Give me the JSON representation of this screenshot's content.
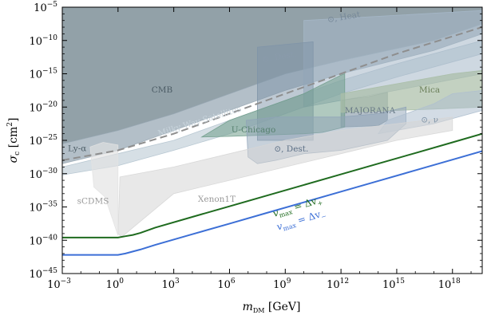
{
  "chart_data": {
    "type": "area",
    "title": "",
    "xlabel": "m_DM [GeV]",
    "ylabel": "σ_c [cm²]",
    "x_scale": "log",
    "y_scale": "log",
    "xlim_log10": [
      -3,
      19.6
    ],
    "ylim_log10": [
      -45,
      -5
    ],
    "x_ticks": [
      {
        "exp": -3,
        "label": "10",
        "sup": "−3"
      },
      {
        "exp": 0,
        "label": "10",
        "sup": "0"
      },
      {
        "exp": 3,
        "label": "10",
        "sup": "3"
      },
      {
        "exp": 6,
        "label": "10",
        "sup": "6"
      },
      {
        "exp": 9,
        "label": "10",
        "sup": "9"
      },
      {
        "exp": 12,
        "label": "10",
        "sup": "12"
      },
      {
        "exp": 15,
        "label": "10",
        "sup": "15"
      },
      {
        "exp": 18,
        "label": "10",
        "sup": "18"
      }
    ],
    "y_ticks": [
      {
        "exp": -5,
        "label": "10",
        "sup": "−5"
      },
      {
        "exp": -10,
        "label": "10",
        "sup": "−10"
      },
      {
        "exp": -15,
        "label": "10",
        "sup": "−15"
      },
      {
        "exp": -20,
        "label": "10",
        "sup": "−20"
      },
      {
        "exp": -25,
        "label": "10",
        "sup": "−25"
      },
      {
        "exp": -30,
        "label": "10",
        "sup": "−30"
      },
      {
        "exp": -35,
        "label": "10",
        "sup": "−35"
      },
      {
        "exp": -40,
        "label": "10",
        "sup": "−40"
      },
      {
        "exp": -45,
        "label": "10",
        "sup": "−45"
      }
    ],
    "regions": [
      {
        "name": "CMB",
        "color": "#7f9099",
        "opacity": 0.85,
        "points": [
          [
            -3,
            -5
          ],
          [
            19.6,
            -5
          ],
          [
            19.6,
            -7.5
          ],
          [
            17,
            -10
          ],
          [
            12,
            -13
          ],
          [
            9,
            -15
          ],
          [
            6,
            -18
          ],
          [
            3,
            -21
          ],
          [
            0,
            -23.5
          ],
          [
            -3,
            -25.5
          ]
        ]
      },
      {
        "name": "Ly-α",
        "color": "#9aaab5",
        "opacity": 0.75,
        "points": [
          [
            -3,
            -25.5
          ],
          [
            0,
            -23.5
          ],
          [
            3,
            -21
          ],
          [
            6,
            -18
          ],
          [
            9,
            -15
          ],
          [
            12,
            -13
          ],
          [
            17,
            -10
          ],
          [
            19.6,
            -7.5
          ],
          [
            19.6,
            -9
          ],
          [
            17,
            -11.5
          ],
          [
            12,
            -15
          ],
          [
            9,
            -17.5
          ],
          [
            6,
            -20.5
          ],
          [
            3,
            -23.5
          ],
          [
            0,
            -26.5
          ],
          [
            -3,
            -28.5
          ]
        ]
      },
      {
        "name": "Milky Way Satellites",
        "color": "#b4c4cf",
        "opacity": 0.55,
        "points": [
          [
            -3,
            -29
          ],
          [
            0,
            -27
          ],
          [
            3,
            -25
          ],
          [
            6,
            -22
          ],
          [
            9,
            -19
          ],
          [
            12,
            -16
          ],
          [
            15,
            -13.5
          ],
          [
            19.6,
            -10
          ],
          [
            19.6,
            -12
          ],
          [
            15,
            -15.5
          ],
          [
            12,
            -18
          ],
          [
            9,
            -21
          ],
          [
            6,
            -24
          ],
          [
            3,
            -26.5
          ],
          [
            0,
            -28.8
          ],
          [
            -3,
            -30.2
          ]
        ]
      },
      {
        "name": "⊙, Heat",
        "color": "#a6b8c9",
        "opacity": 0.55,
        "points": [
          [
            10,
            -7
          ],
          [
            19.6,
            -5.5
          ],
          [
            19.6,
            -15
          ],
          [
            14,
            -18
          ],
          [
            10,
            -20
          ]
        ]
      },
      {
        "name": "⊙, Dest.",
        "color": "#7e93a8",
        "opacity": 0.5,
        "points": [
          [
            7.5,
            -11
          ],
          [
            10.5,
            -10.2
          ],
          [
            10.5,
            -25
          ],
          [
            7.5,
            -25
          ]
        ]
      },
      {
        "name": "MAJORANA",
        "color": "#8b9dab",
        "opacity": 0.65,
        "points": [
          [
            12,
            -19
          ],
          [
            13.5,
            -18.4
          ],
          [
            14.5,
            -17.8
          ],
          [
            14.5,
            -22
          ],
          [
            14,
            -22.8
          ],
          [
            12,
            -23
          ]
        ]
      },
      {
        "name": "U-Chicago",
        "color": "#6f9c8a",
        "opacity": 0.55,
        "points": [
          [
            4.5,
            -24.5
          ],
          [
            6,
            -22
          ],
          [
            8,
            -20
          ],
          [
            10,
            -18
          ],
          [
            12,
            -15.2
          ],
          [
            12.2,
            -15
          ],
          [
            12.2,
            -23
          ],
          [
            11,
            -23.8
          ],
          [
            10,
            -24
          ],
          [
            8,
            -24.2
          ],
          [
            6,
            -24.4
          ]
        ]
      },
      {
        "name": "Mica",
        "color": "#a9bea6",
        "opacity": 0.7,
        "points": [
          [
            12,
            -18
          ],
          [
            14,
            -17
          ],
          [
            16,
            -16
          ],
          [
            18,
            -15
          ],
          [
            19.6,
            -14.5
          ],
          [
            19.6,
            -20
          ],
          [
            17,
            -20.3
          ],
          [
            14,
            -20.6
          ],
          [
            12,
            -20.8
          ]
        ]
      },
      {
        "name": "⊙, Dest.",
        "color": "#8fa3b8",
        "opacity": 0.5,
        "points": [
          [
            6.9,
            -22
          ],
          [
            8.5,
            -21.5
          ],
          [
            10,
            -21.5
          ],
          [
            12,
            -21.5
          ],
          [
            14,
            -21
          ],
          [
            15.5,
            -20
          ],
          [
            15.5,
            -22.5
          ],
          [
            14.5,
            -25
          ],
          [
            12,
            -26.5
          ],
          [
            10,
            -27
          ],
          [
            8.5,
            -28
          ],
          [
            7.5,
            -28.5
          ],
          [
            7,
            -27.5
          ]
        ]
      },
      {
        "name": "⊙, ν",
        "color": "#aebfcf",
        "opacity": 0.55,
        "points": [
          [
            14.5,
            -22
          ],
          [
            16,
            -20.5
          ],
          [
            17,
            -19.5
          ],
          [
            18,
            -18
          ],
          [
            19.6,
            -17.5
          ],
          [
            19.6,
            -20.5
          ],
          [
            17,
            -22.5
          ],
          [
            15,
            -23.5
          ],
          [
            14,
            -24
          ]
        ]
      },
      {
        "name": "Xenon1T",
        "color": "#d6d6d6",
        "opacity": 0.55,
        "points": [
          [
            0.1,
            -30.5
          ],
          [
            3,
            -29
          ],
          [
            6,
            -27
          ],
          [
            9,
            -25
          ],
          [
            12,
            -23.5
          ],
          [
            15,
            -22.5
          ],
          [
            18,
            -21.5
          ],
          [
            18,
            -23.5
          ],
          [
            15,
            -25
          ],
          [
            12,
            -27
          ],
          [
            9,
            -29
          ],
          [
            6,
            -31
          ],
          [
            3,
            -33
          ],
          [
            0.2,
            -39.5
          ],
          [
            0,
            -39
          ]
        ]
      },
      {
        "name": "sCDMS",
        "color": "#e2e2e2",
        "opacity": 0.65,
        "points": [
          [
            -1.5,
            -26
          ],
          [
            -0.8,
            -25.3
          ],
          [
            0,
            -25.7
          ],
          [
            0,
            -39.3
          ],
          [
            -0.7,
            -33.5
          ],
          [
            -1.3,
            -32
          ]
        ]
      }
    ],
    "dashed_line": {
      "name": "CMB projection",
      "color": "#8e8e8e",
      "points": [
        [
          -3,
          -28
        ],
        [
          0,
          -26.5
        ],
        [
          3,
          -24
        ],
        [
          6,
          -21
        ],
        [
          9,
          -18
        ],
        [
          12,
          -15
        ],
        [
          15,
          -12
        ],
        [
          19.6,
          -8
        ]
      ]
    },
    "series": [
      {
        "name": "v_max = Δv₊",
        "color": "#1f6b1f",
        "x": [
          -3,
          -1,
          0,
          0.4,
          0.8,
          1.2,
          2,
          4,
          6,
          8,
          10,
          12,
          14,
          16,
          18,
          19.6
        ],
        "y": [
          -39.6,
          -39.6,
          -39.6,
          -39.4,
          -39.2,
          -38.9,
          -38.1,
          -36.5,
          -34.9,
          -33.3,
          -31.7,
          -30.1,
          -28.5,
          -26.9,
          -25.3,
          -24.0
        ]
      },
      {
        "name": "v_max = Δv₋",
        "color": "#3c6fd6",
        "x": [
          -3,
          -1,
          0,
          0.4,
          0.8,
          1.2,
          2,
          4,
          6,
          8,
          10,
          12,
          14,
          16,
          18,
          19.6
        ],
        "y": [
          -42.2,
          -42.2,
          -42.2,
          -42.0,
          -41.7,
          -41.4,
          -40.7,
          -39.1,
          -37.5,
          -35.9,
          -34.3,
          -32.7,
          -31.1,
          -29.5,
          -27.9,
          -26.6
        ]
      }
    ],
    "region_labels": [
      {
        "text": "CMB",
        "x": 1.8,
        "y": -17.8,
        "color": "#4d5d66",
        "rotate": 0
      },
      {
        "text": "Ly-α",
        "x": -2.7,
        "y": -26.6,
        "color": "#4d5d66",
        "rotate": 0
      },
      {
        "text": "Milky Way Satellites",
        "x": 2.2,
        "y": -24.4,
        "color": "#c8d4dc",
        "rotate": -17
      },
      {
        "text": "⊙, Heat",
        "x": 11.3,
        "y": -7.3,
        "color": "#77899a",
        "rotate": -10
      },
      {
        "text": "⊙, Dest.",
        "x": 7.8,
        "y": -13.3,
        "color": "#8a9bab",
        "rotate": -10
      },
      {
        "text": "Mica",
        "x": 16.2,
        "y": -17.8,
        "color": "#6b7f5a",
        "rotate": 0
      },
      {
        "text": "MAJORANA",
        "x": 12.2,
        "y": -20.9,
        "color": "#6a7b88",
        "rotate": 0
      },
      {
        "text": "U-Chicago",
        "x": 6.1,
        "y": -23.8,
        "color": "#56806e",
        "rotate": 0
      },
      {
        "text": "⊙, Dest.",
        "x": 8.4,
        "y": -26.7,
        "color": "#5d7086",
        "rotate": 0
      },
      {
        "text": "⊙, ν",
        "x": 16.3,
        "y": -22.3,
        "color": "#8195a8",
        "rotate": 0
      },
      {
        "text": "sCDMS",
        "x": -2.2,
        "y": -34.5,
        "color": "#9a9a9a",
        "rotate": 0
      },
      {
        "text": "Xenon1T",
        "x": 4.3,
        "y": -34.2,
        "color": "#9a9a9a",
        "rotate": 0
      }
    ],
    "curve_labels": [
      {
        "main": "v",
        "sub": "max",
        "rest": " = Δv",
        "sub2": "+",
        "x": 8.4,
        "y": -36.5,
        "color": "#1f6b1f",
        "rotate": -17
      },
      {
        "main": "v",
        "sub": "max",
        "rest": " = Δv",
        "sub2": "−",
        "x": 8.6,
        "y": -38.5,
        "color": "#3c6fd6",
        "rotate": -17
      }
    ]
  }
}
